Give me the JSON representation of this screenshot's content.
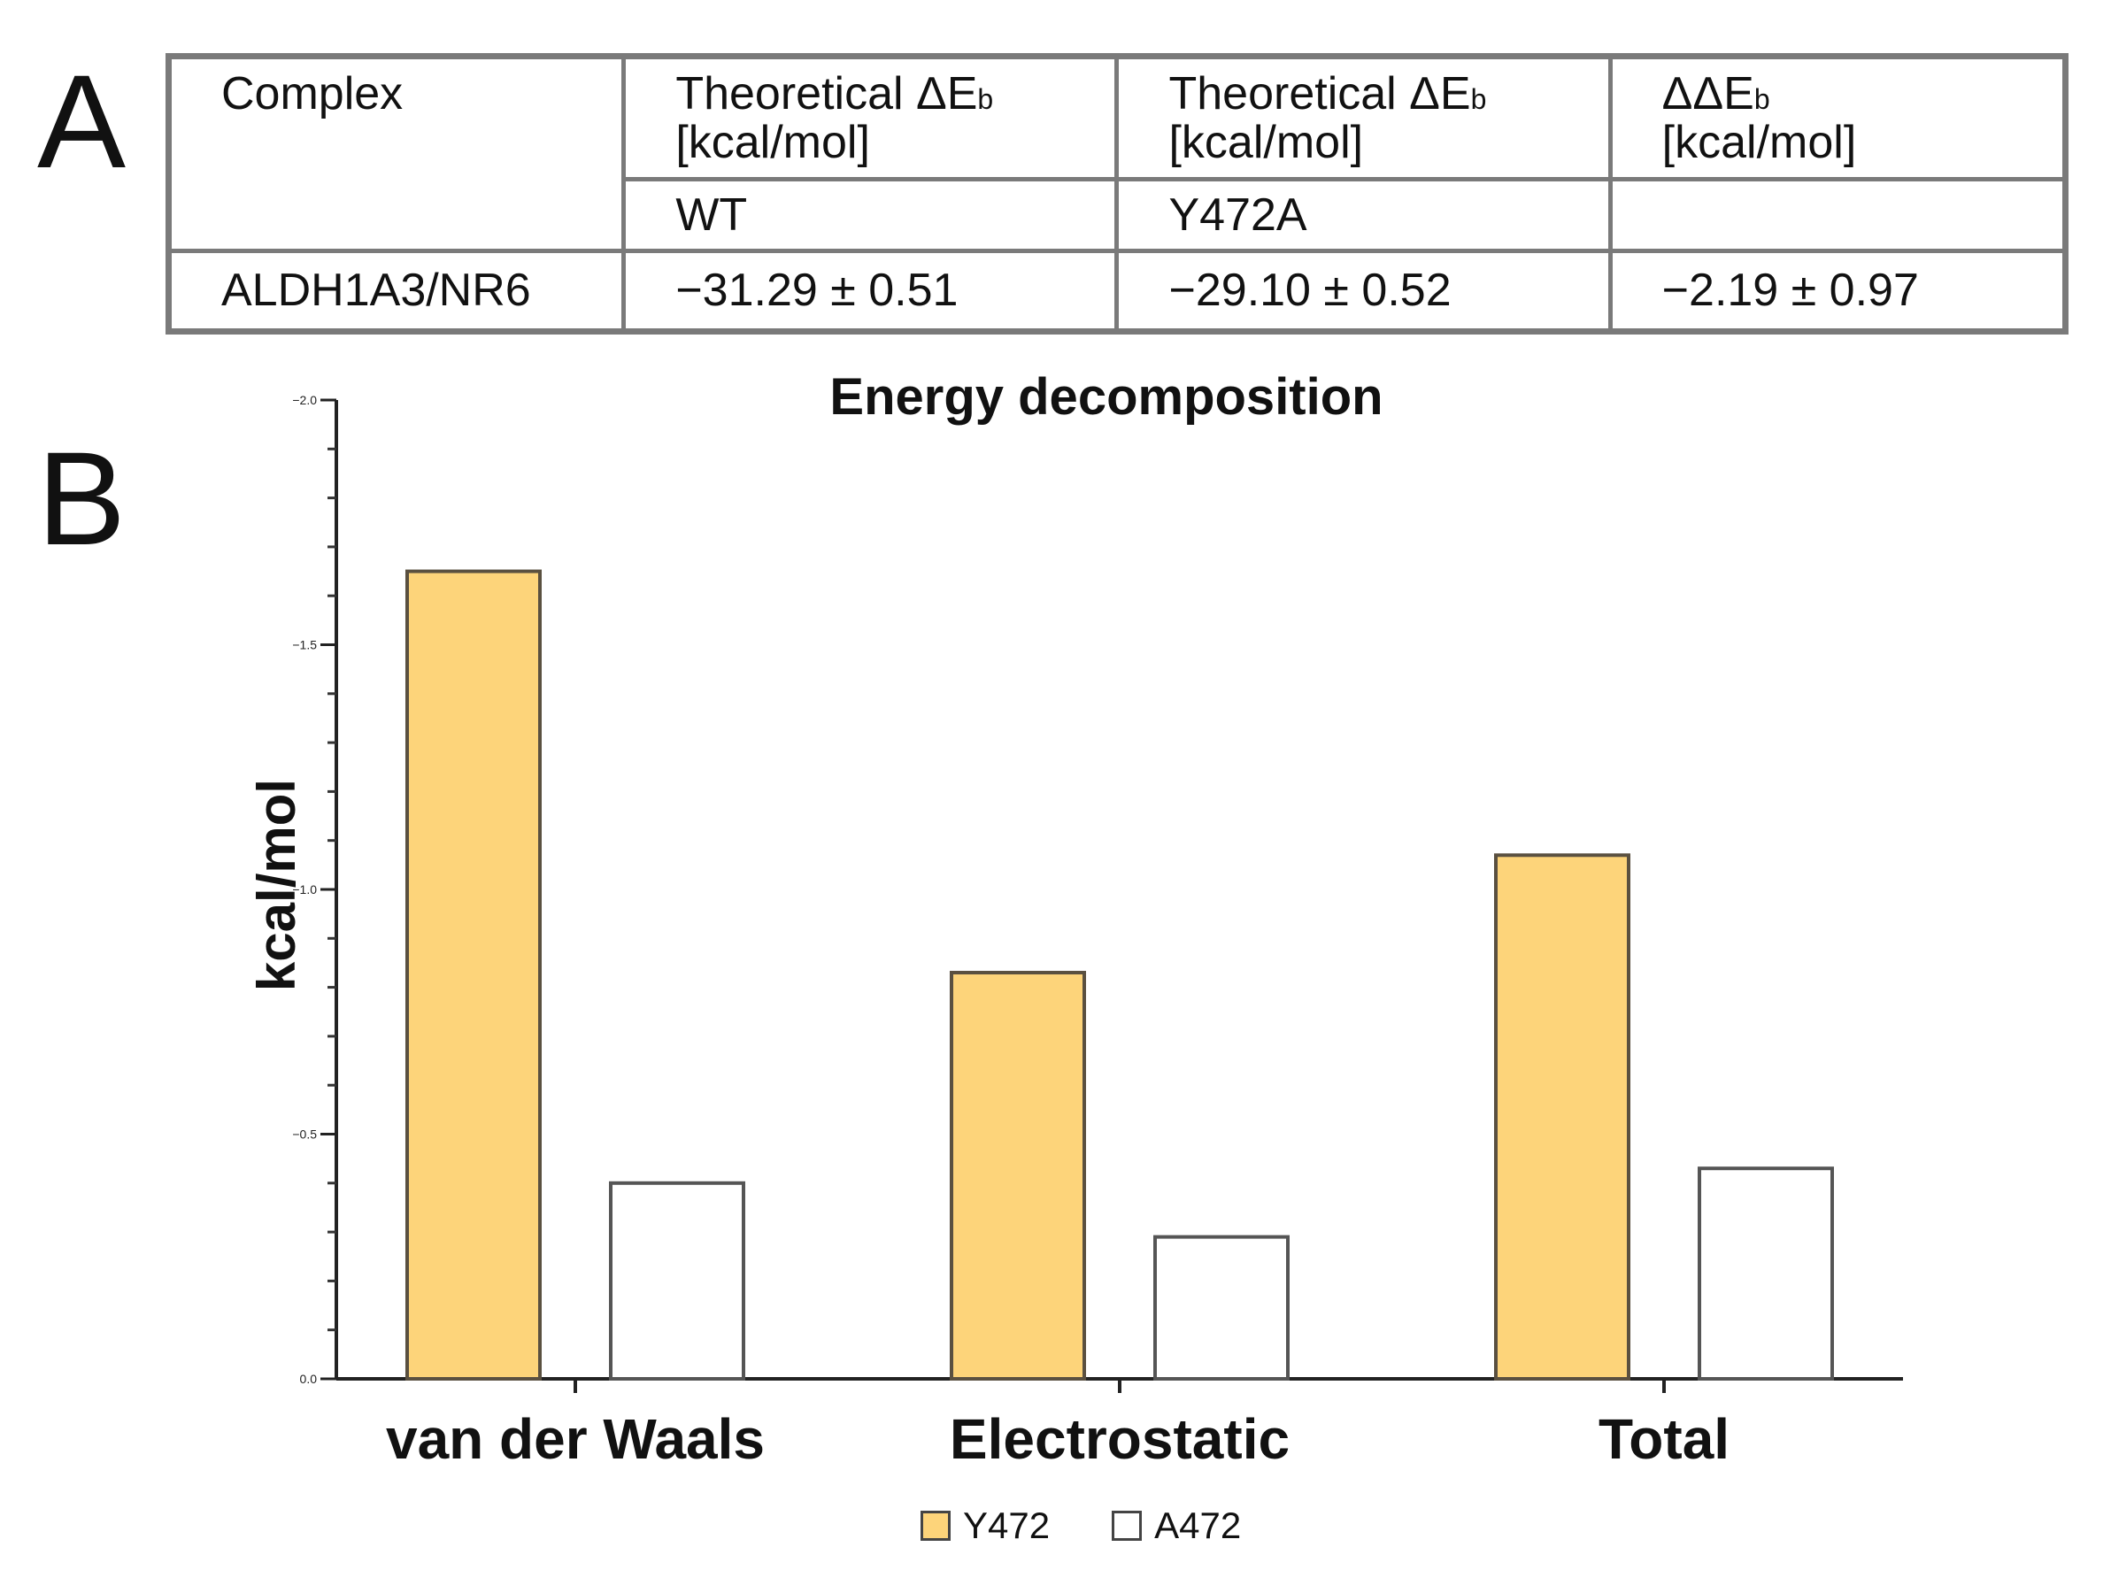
{
  "panels": {
    "a": "A",
    "b": "B"
  },
  "table": {
    "col_complex": "Complex",
    "col_wt_title": "Theoretical ΔE",
    "col_wt_sub": "b",
    "col_wt_unit": "[kcal/mol]",
    "col_wt_label": "WT",
    "col_mut_title": "Theoretical ΔE",
    "col_mut_sub": "b",
    "col_mut_unit": "[kcal/mol]",
    "col_mut_label": "Y472A",
    "col_dd_title": "ΔΔE",
    "col_dd_sub": "b",
    "col_dd_unit": "[kcal/mol]",
    "row_complex": "ALDH1A3/NR6",
    "row_wt": "−31.29 ± 0.51",
    "row_mut": "−29.10 ± 0.52",
    "row_dd": "−2.19 ± 0.97"
  },
  "chart_data": {
    "type": "bar",
    "title": "Energy decomposition",
    "ylabel": "kcal/mol",
    "xlabel": "",
    "categories": [
      "van der Waals",
      "Electrostatic",
      "Total"
    ],
    "series": [
      {
        "name": "Y472",
        "values": [
          -1.65,
          -0.83,
          -1.07
        ],
        "color": "#fdd47a"
      },
      {
        "name": "A472",
        "values": [
          -0.4,
          -0.29,
          -0.43
        ],
        "color": "#ffffff"
      }
    ],
    "ylim": [
      0.0,
      -2.0
    ],
    "yticks": [
      {
        "value": -2.0,
        "label": "−2.0"
      },
      {
        "value": -1.5,
        "label": "−1.5"
      },
      {
        "value": -1.0,
        "label": "−1.0"
      },
      {
        "value": -0.5,
        "label": "−0.5"
      },
      {
        "value": 0.0,
        "label": "0.0"
      }
    ],
    "legend_position": "bottom-center"
  }
}
